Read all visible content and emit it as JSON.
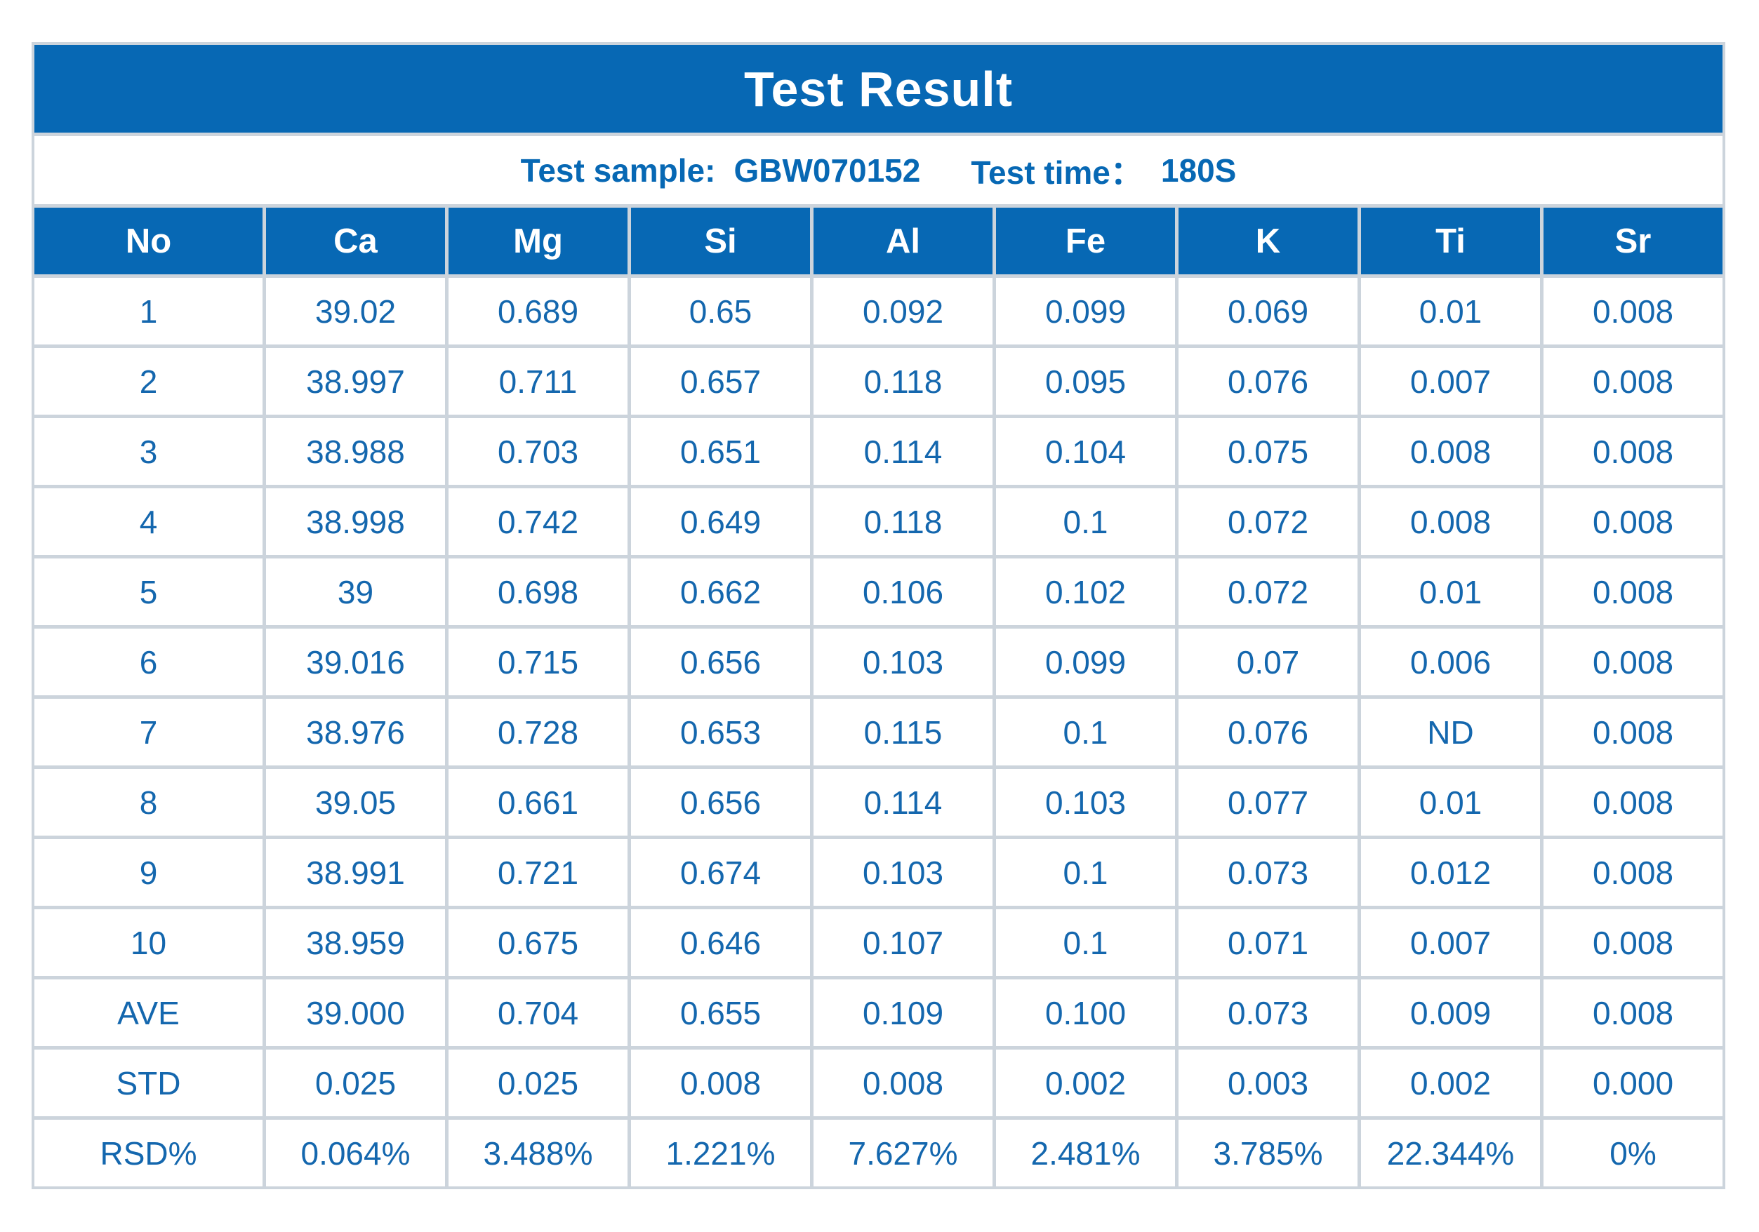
{
  "title": "Test Result",
  "subtitle": {
    "sample_label": "Test sample:",
    "sample_value": "GBW070152",
    "time_label": "Test time：",
    "time_value": "180S"
  },
  "colors": {
    "primary_blue": "#0768b4",
    "value_text_blue": "#1467ae",
    "grid_line": "#ccd4dc",
    "background": "#ffffff"
  },
  "chart_data": {
    "type": "table",
    "columns": [
      "No",
      "Ca",
      "Mg",
      "Si",
      "Al",
      "Fe",
      "K",
      "Ti",
      "Sr"
    ],
    "rows": [
      [
        "1",
        "39.02",
        "0.689",
        "0.65",
        "0.092",
        "0.099",
        "0.069",
        "0.01",
        "0.008"
      ],
      [
        "2",
        "38.997",
        "0.711",
        "0.657",
        "0.118",
        "0.095",
        "0.076",
        "0.007",
        "0.008"
      ],
      [
        "3",
        "38.988",
        "0.703",
        "0.651",
        "0.114",
        "0.104",
        "0.075",
        "0.008",
        "0.008"
      ],
      [
        "4",
        "38.998",
        "0.742",
        "0.649",
        "0.118",
        "0.1",
        "0.072",
        "0.008",
        "0.008"
      ],
      [
        "5",
        "39",
        "0.698",
        "0.662",
        "0.106",
        "0.102",
        "0.072",
        "0.01",
        "0.008"
      ],
      [
        "6",
        "39.016",
        "0.715",
        "0.656",
        "0.103",
        "0.099",
        "0.07",
        "0.006",
        "0.008"
      ],
      [
        "7",
        "38.976",
        "0.728",
        "0.653",
        "0.115",
        "0.1",
        "0.076",
        "ND",
        "0.008"
      ],
      [
        "8",
        "39.05",
        "0.661",
        "0.656",
        "0.114",
        "0.103",
        "0.077",
        "0.01",
        "0.008"
      ],
      [
        "9",
        "38.991",
        "0.721",
        "0.674",
        "0.103",
        "0.1",
        "0.073",
        "0.012",
        "0.008"
      ],
      [
        "10",
        "38.959",
        "0.675",
        "0.646",
        "0.107",
        "0.1",
        "0.071",
        "0.007",
        "0.008"
      ],
      [
        "AVE",
        "39.000",
        "0.704",
        "0.655",
        "0.109",
        "0.100",
        "0.073",
        "0.009",
        "0.008"
      ],
      [
        "STD",
        "0.025",
        "0.025",
        "0.008",
        "0.008",
        "0.002",
        "0.003",
        "0.002",
        "0.000"
      ],
      [
        "RSD%",
        "0.064%",
        "3.488%",
        "1.221%",
        "7.627%",
        "2.481%",
        "3.785%",
        "22.344%",
        "0%"
      ]
    ]
  }
}
